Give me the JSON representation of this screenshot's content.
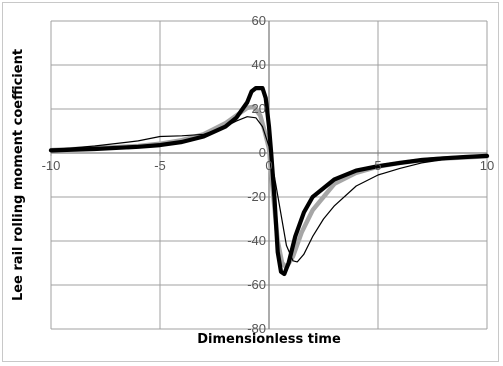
{
  "chart_data": {
    "type": "line",
    "title": "",
    "xlabel": "Dimensionless time",
    "ylabel": "Lee rail rolling moment coefficient",
    "xlim": [
      -10,
      10
    ],
    "ylim": [
      -80,
      60
    ],
    "x_ticks": [
      -10,
      -5,
      0,
      5,
      10
    ],
    "y_ticks": [
      60,
      40,
      20,
      0,
      -20,
      -40,
      -60,
      -80
    ],
    "x_tick_labels": [
      "-10",
      "-5",
      "0",
      "5",
      "10"
    ],
    "y_tick_labels": [
      "60",
      "40",
      "20",
      "0",
      "-20",
      "-40",
      "-60",
      "-80"
    ],
    "grid": true,
    "legend": "none",
    "series": [
      {
        "color": "#000000",
        "style": "thick",
        "points": [
          [
            -10,
            1.2
          ],
          [
            -8,
            1.8
          ],
          [
            -6,
            2.8
          ],
          [
            -5,
            3.6
          ],
          [
            -4,
            5
          ],
          [
            -3,
            7.5
          ],
          [
            -2,
            12
          ],
          [
            -1.5,
            16
          ],
          [
            -1,
            23
          ],
          [
            -0.8,
            28
          ],
          [
            -0.6,
            29.5
          ],
          [
            -0.3,
            29.5
          ],
          [
            -0.15,
            25
          ],
          [
            0,
            12
          ],
          [
            0.1,
            0
          ],
          [
            0.25,
            -20
          ],
          [
            0.4,
            -45
          ],
          [
            0.55,
            -54
          ],
          [
            0.7,
            -55
          ],
          [
            0.9,
            -50
          ],
          [
            1.2,
            -38
          ],
          [
            1.6,
            -27
          ],
          [
            2,
            -20
          ],
          [
            3,
            -12
          ],
          [
            4,
            -8
          ],
          [
            5,
            -6
          ],
          [
            6,
            -4.5
          ],
          [
            7,
            -3.2
          ],
          [
            8,
            -2.4
          ],
          [
            9,
            -1.8
          ],
          [
            10,
            -1.3
          ]
        ]
      },
      {
        "color": "#a6a6a6",
        "style": "medium",
        "points": [
          [
            -10,
            1.3
          ],
          [
            -8,
            2.2
          ],
          [
            -6,
            3.2
          ],
          [
            -5,
            4.2
          ],
          [
            -4,
            5.8
          ],
          [
            -3,
            8.5
          ],
          [
            -2,
            13.5
          ],
          [
            -1.5,
            17
          ],
          [
            -1,
            20.5
          ],
          [
            -0.7,
            21
          ],
          [
            -0.4,
            17
          ],
          [
            -0.2,
            10
          ],
          [
            0,
            2
          ],
          [
            0.2,
            -20
          ],
          [
            0.4,
            -40
          ],
          [
            0.6,
            -50
          ],
          [
            0.8,
            -52
          ],
          [
            1.1,
            -47
          ],
          [
            1.5,
            -36
          ],
          [
            2,
            -26
          ],
          [
            3,
            -14
          ],
          [
            4,
            -9
          ],
          [
            5,
            -6.2
          ],
          [
            6,
            -4.5
          ],
          [
            7,
            -3.3
          ],
          [
            8,
            -2.5
          ],
          [
            9,
            -2
          ],
          [
            10,
            -1.5
          ]
        ]
      },
      {
        "color": "#000000",
        "style": "thin",
        "points": [
          [
            -10,
            1.5
          ],
          [
            -8,
            3.2
          ],
          [
            -6,
            5.5
          ],
          [
            -5,
            7.5
          ],
          [
            -4,
            7.8
          ],
          [
            -3,
            8.5
          ],
          [
            -2,
            12
          ],
          [
            -1.5,
            14.5
          ],
          [
            -1,
            16.5
          ],
          [
            -0.6,
            16
          ],
          [
            -0.3,
            12
          ],
          [
            0,
            3
          ],
          [
            0.2,
            -8
          ],
          [
            0.5,
            -25
          ],
          [
            0.8,
            -42
          ],
          [
            1.1,
            -49
          ],
          [
            1.3,
            -49.5
          ],
          [
            1.6,
            -46
          ],
          [
            2,
            -38
          ],
          [
            2.5,
            -30
          ],
          [
            3,
            -24
          ],
          [
            4,
            -15
          ],
          [
            5,
            -10
          ],
          [
            6,
            -7
          ],
          [
            7,
            -4.5
          ],
          [
            8,
            -3
          ],
          [
            9,
            -2
          ],
          [
            10,
            -1.3
          ]
        ]
      }
    ]
  }
}
